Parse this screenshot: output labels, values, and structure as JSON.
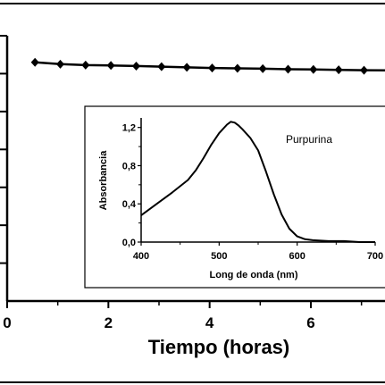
{
  "chart_data": [
    {
      "type": "line",
      "xlabel": "Tiempo (horas)",
      "xlim": [
        0,
        7.5
      ],
      "ylim": [
        0,
        1.4
      ],
      "x_ticks": [
        "0",
        "2",
        "4",
        "6"
      ],
      "series": [
        {
          "x": [
            0.55,
            1.05,
            1.55,
            2.05,
            2.55,
            3.05,
            3.55,
            4.05,
            4.55,
            5.05,
            5.55,
            6.05,
            6.55,
            7.05,
            7.5
          ],
          "values": [
            1.26,
            1.25,
            1.245,
            1.243,
            1.24,
            1.237,
            1.233,
            1.23,
            1.228,
            1.226,
            1.223,
            1.222,
            1.22,
            1.218,
            1.217
          ]
        }
      ]
    },
    {
      "type": "line",
      "title": "Purpurina",
      "xlabel": "Long de onda (nm)",
      "ylabel": "Absorbancia",
      "xlim": [
        400,
        700
      ],
      "ylim": [
        0,
        1.3
      ],
      "x_ticks": [
        "400",
        "500",
        "600",
        "700"
      ],
      "y_ticks": [
        "0,0",
        "0,4",
        "0,8",
        "1,2"
      ],
      "series": [
        {
          "x": [
            400,
            420,
            440,
            460,
            470,
            480,
            490,
            500,
            510,
            515,
            520,
            525,
            530,
            540,
            550,
            560,
            570,
            580,
            590,
            600,
            610,
            620,
            640,
            660,
            680,
            700
          ],
          "values": [
            0.28,
            0.4,
            0.52,
            0.65,
            0.75,
            0.88,
            1.02,
            1.14,
            1.23,
            1.26,
            1.25,
            1.22,
            1.18,
            1.09,
            0.96,
            0.74,
            0.5,
            0.29,
            0.14,
            0.06,
            0.03,
            0.02,
            0.01,
            0.01,
            0.0,
            0.0
          ]
        }
      ]
    }
  ]
}
